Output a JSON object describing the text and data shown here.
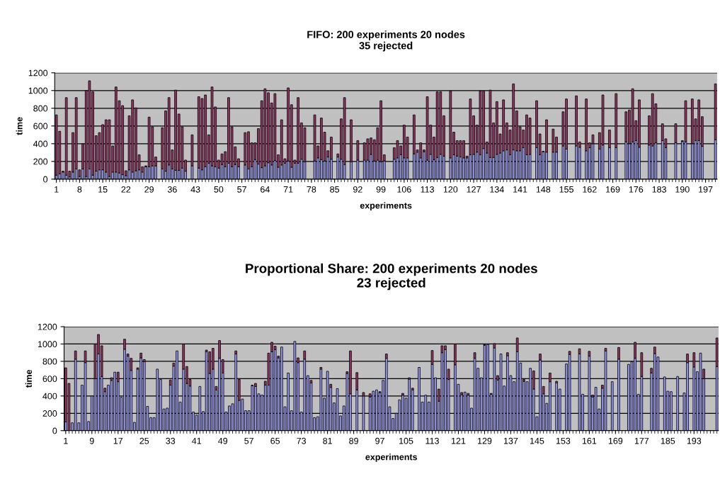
{
  "chart_data": [
    {
      "type": "bar",
      "stacked": true,
      "title": "FIFO: 200 experiments 20 nodes\n35 rejected",
      "xlabel": "experiments",
      "ylabel": "time",
      "ylim": [
        0,
        1200
      ],
      "yticks": [
        0,
        200,
        400,
        600,
        800,
        1000,
        1200
      ],
      "grid": "y",
      "categories": [
        "1",
        null,
        null,
        null,
        null,
        null,
        null,
        "8",
        null,
        null,
        null,
        null,
        null,
        null,
        "15",
        null,
        null,
        null,
        null,
        null,
        null,
        "22",
        null,
        null,
        null,
        null,
        null,
        null,
        "29",
        null,
        null,
        null,
        null,
        null,
        null,
        "36",
        null,
        null,
        null,
        null,
        null,
        null,
        "43",
        null,
        null,
        null,
        null,
        null,
        null,
        "50",
        null,
        null,
        null,
        null,
        null,
        null,
        "57",
        null,
        null,
        null,
        null,
        null,
        null,
        "64",
        null,
        null,
        null,
        null,
        null,
        null,
        "71",
        null,
        null,
        null,
        null,
        null,
        null,
        "78",
        null,
        null,
        null,
        null,
        null,
        null,
        "85",
        null,
        null,
        null,
        null,
        null,
        null,
        "92",
        null,
        null,
        null,
        null,
        null,
        null,
        "99",
        null,
        null,
        null,
        null,
        null,
        null,
        "106",
        null,
        null,
        null,
        null,
        null,
        null,
        "113",
        null,
        null,
        null,
        null,
        null,
        null,
        "120",
        null,
        null,
        null,
        null,
        null,
        null,
        "127",
        null,
        null,
        null,
        null,
        null,
        null,
        "134",
        null,
        null,
        null,
        null,
        null,
        null,
        "141",
        null,
        null,
        null,
        null,
        null,
        null,
        "148",
        null,
        null,
        null,
        null,
        null,
        null,
        "155",
        null,
        null,
        null,
        null,
        null,
        null,
        "162",
        null,
        null,
        null,
        null,
        null,
        null,
        "169",
        null,
        null,
        null,
        null,
        null,
        null,
        "176",
        null,
        null,
        null,
        null,
        null,
        null,
        "183",
        null,
        null,
        null,
        null,
        null,
        null,
        "190",
        null,
        null,
        null,
        null,
        null,
        null,
        "197",
        null,
        null,
        null
      ],
      "series": [
        {
          "color": "#9999ff",
          "values": [
            45,
            60,
            80,
            45,
            25,
            80,
            115,
            30,
            115,
            30,
            115,
            45,
            90,
            105,
            105,
            80,
            30,
            80,
            80,
            70,
            50,
            40,
            105,
            80,
            95,
            105,
            80,
            140,
            140,
            150,
            150,
            0,
            115,
            90,
            160,
            115,
            100,
            100,
            125,
            90,
            0,
            150,
            0,
            125,
            105,
            140,
            180,
            150,
            140,
            125,
            165,
            140,
            180,
            140,
            165,
            140,
            0,
            160,
            115,
            140,
            220,
            170,
            130,
            150,
            185,
            160,
            210,
            135,
            160,
            180,
            205,
            135,
            180,
            180,
            225,
            195,
            0,
            0,
            205,
            240,
            220,
            205,
            250,
            225,
            0,
            250,
            225,
            165,
            0,
            195,
            0,
            215,
            0,
            215,
            215,
            280,
            205,
            215,
            195,
            205,
            0,
            0,
            225,
            240,
            275,
            240,
            240,
            0,
            285,
            305,
            240,
            310,
            215,
            280,
            220,
            245,
            280,
            260,
            0,
            240,
            275,
            260,
            250,
            240,
            240,
            275,
            280,
            305,
            275,
            345,
            295,
            245,
            245,
            280,
            295,
            320,
            330,
            275,
            330,
            320,
            320,
            355,
            275,
            280,
            0,
            355,
            275,
            310,
            305,
            0,
            305,
            305,
            0,
            375,
            340,
            0,
            0,
            375,
            360,
            0,
            320,
            355,
            400,
            0,
            340,
            385,
            0,
            355,
            0,
            355,
            0,
            0,
            420,
            400,
            420,
            435,
            360,
            0,
            0,
            385,
            375,
            410,
            0,
            435,
            355,
            0,
            0,
            410,
            0,
            425,
            420,
            0,
            400,
            435,
            435,
            370,
            0,
            0,
            0,
            445
          ]
        },
        {
          "color": "#993366",
          "values": [
            680,
            480,
            10,
            875,
            65,
            445,
            805,
            75,
            285,
            970,
            995,
            940,
            400,
            420,
            510,
            590,
            640,
            295,
            960,
            815,
            780,
            55,
            610,
            815,
            710,
            170,
            60,
            10,
            560,
            440,
            100,
            0,
            465,
            680,
            760,
            215,
            905,
            635,
            465,
            125,
            0,
            350,
            0,
            805,
            805,
            810,
            320,
            890,
            675,
            90,
            120,
            170,
            740,
            450,
            200,
            90,
            0,
            365,
            420,
            270,
            190,
            400,
            755,
            870,
            790,
            700,
            755,
            140,
            510,
            50,
            825,
            705,
            35,
            740,
            410,
            385,
            0,
            0,
            520,
            135,
            470,
            325,
            70,
            250,
            0,
            35,
            455,
            755,
            0,
            475,
            0,
            220,
            0,
            195,
            240,
            185,
            240,
            365,
            690,
            70,
            0,
            0,
            130,
            195,
            100,
            370,
            235,
            0,
            440,
            25,
            170,
            20,
            715,
            330,
            255,
            740,
            705,
            455,
            0,
            755,
            255,
            175,
            185,
            195,
            20,
            630,
            435,
            305,
            720,
            650,
            125,
            760,
            390,
            595,
            215,
            575,
            305,
            280,
            745,
            450,
            270,
            200,
            450,
            410,
            0,
            530,
            235,
            5,
            365,
            0,
            260,
            170,
            0,
            385,
            565,
            0,
            0,
            565,
            60,
            0,
            585,
            55,
            100,
            0,
            185,
            565,
            0,
            200,
            0,
            610,
            0,
            0,
            340,
            380,
            600,
            225,
            535,
            0,
            0,
            330,
            590,
            440,
            0,
            190,
            100,
            0,
            0,
            215,
            0,
            10,
            465,
            0,
            505,
            245,
            460,
            335,
            0,
            0,
            0,
            630
          ]
        }
      ]
    },
    {
      "type": "bar",
      "stacked": true,
      "title": "Proportional Share: 200 experiments 20 nodes\n23 rejected",
      "xlabel": "experiments",
      "ylabel": "time",
      "ylim": [
        0,
        1200
      ],
      "yticks": [
        0,
        200,
        400,
        600,
        800,
        1000,
        1200
      ],
      "grid": "y",
      "categories": [
        "1",
        null,
        null,
        null,
        null,
        null,
        null,
        null,
        "9",
        null,
        null,
        null,
        null,
        null,
        null,
        null,
        "17",
        null,
        null,
        null,
        null,
        null,
        null,
        null,
        "25",
        null,
        null,
        null,
        null,
        null,
        null,
        null,
        "33",
        null,
        null,
        null,
        null,
        null,
        null,
        null,
        "41",
        null,
        null,
        null,
        null,
        null,
        null,
        null,
        "49",
        null,
        null,
        null,
        null,
        null,
        null,
        null,
        "57",
        null,
        null,
        null,
        null,
        null,
        null,
        null,
        "65",
        null,
        null,
        null,
        null,
        null,
        null,
        null,
        "73",
        null,
        null,
        null,
        null,
        null,
        null,
        null,
        "81",
        null,
        null,
        null,
        null,
        null,
        null,
        null,
        "89",
        null,
        null,
        null,
        null,
        null,
        null,
        null,
        "97",
        null,
        null,
        null,
        null,
        null,
        null,
        null,
        "105",
        null,
        null,
        null,
        null,
        null,
        null,
        null,
        "113",
        null,
        null,
        null,
        null,
        null,
        null,
        null,
        "121",
        null,
        null,
        null,
        null,
        null,
        null,
        null,
        "129",
        null,
        null,
        null,
        null,
        null,
        null,
        null,
        "137",
        null,
        null,
        null,
        null,
        null,
        null,
        null,
        "145",
        null,
        null,
        null,
        null,
        null,
        null,
        null,
        "153",
        null,
        null,
        null,
        null,
        null,
        null,
        null,
        "161",
        null,
        null,
        null,
        null,
        null,
        null,
        null,
        "169",
        null,
        null,
        null,
        null,
        null,
        null,
        null,
        "177",
        null,
        null,
        null,
        null,
        null,
        null,
        null,
        "185",
        null,
        null,
        null,
        null,
        null,
        null,
        null,
        "193",
        null,
        null,
        null,
        null,
        null,
        null,
        null
      ],
      "series": [
        {
          "color": "#9999ff",
          "values": [
            100,
            0,
            90,
            825,
            90,
            525,
            785,
            105,
            400,
            600,
            885,
            625,
            450,
            525,
            580,
            675,
            565,
            385,
            940,
            860,
            695,
            95,
            710,
            840,
            795,
            280,
            150,
            150,
            710,
            590,
            250,
            260,
            525,
            745,
            920,
            330,
            710,
            545,
            515,
            215,
            180,
            510,
            220,
            910,
            660,
            710,
            470,
            835,
            665,
            215,
            285,
            310,
            885,
            350,
            365,
            230,
            230,
            520,
            510,
            425,
            410,
            525,
            525,
            910,
            935,
            840,
            965,
            275,
            665,
            230,
            1030,
            785,
            215,
            825,
            635,
            550,
            150,
            160,
            710,
            375,
            685,
            500,
            320,
            485,
            170,
            285,
            660,
            425,
            0,
            470,
            0,
            400,
            0,
            390,
            455,
            470,
            440,
            580,
            835,
            275,
            140,
            200,
            355,
            410,
            375,
            595,
            470,
            0,
            730,
            330,
            410,
            330,
            765,
            610,
            340,
            900,
            935,
            590,
            0,
            760,
            535,
            415,
            445,
            410,
            260,
            835,
            720,
            610,
            985,
            995,
            420,
            955,
            585,
            885,
            515,
            865,
            635,
            565,
            910,
            780,
            570,
            565,
            720,
            480,
            160,
            815,
            425,
            315,
            565,
            0,
            550,
            480,
            0,
            770,
            880,
            0,
            0,
            885,
            420,
            0,
            860,
            390,
            500,
            250,
            490,
            920,
            0,
            565,
            0,
            825,
            0,
            0,
            765,
            795,
            835,
            420,
            625,
            0,
            0,
            665,
            890,
            850,
            0,
            620,
            455,
            450,
            0,
            625,
            0,
            435,
            785,
            0,
            735,
            680,
            895,
            600,
            0,
            0,
            0,
            740
          ]
        },
        {
          "color": "#993366",
          "values": [
            625,
            545,
            0,
            95,
            0,
            0,
            135,
            0,
            0,
            400,
            225,
            355,
            40,
            0,
            30,
            0,
            110,
            0,
            115,
            25,
            140,
            0,
            15,
            55,
            25,
            0,
            0,
            0,
            0,
            0,
            0,
            0,
            60,
            35,
            0,
            0,
            290,
            195,
            75,
            0,
            0,
            0,
            0,
            20,
            250,
            240,
            40,
            205,
            155,
            0,
            0,
            0,
            35,
            240,
            0,
            0,
            0,
            5,
            35,
            0,
            0,
            45,
            370,
            110,
            40,
            20,
            0,
            0,
            0,
            0,
            0,
            55,
            0,
            95,
            0,
            30,
            0,
            0,
            20,
            0,
            0,
            35,
            0,
            0,
            0,
            0,
            20,
            495,
            0,
            200,
            0,
            40,
            0,
            35,
            0,
            0,
            10,
            0,
            50,
            0,
            0,
            0,
            0,
            20,
            0,
            15,
            20,
            0,
            0,
            0,
            0,
            0,
            160,
            0,
            140,
            80,
            45,
            120,
            0,
            240,
            0,
            25,
            0,
            20,
            0,
            65,
            0,
            0,
            10,
            0,
            10,
            50,
            50,
            0,
            0,
            35,
            0,
            0,
            160,
            0,
            20,
            0,
            0,
            210,
            0,
            70,
            85,
            0,
            100,
            0,
            20,
            0,
            0,
            0,
            35,
            0,
            0,
            60,
            0,
            0,
            55,
            20,
            0,
            0,
            35,
            30,
            0,
            0,
            0,
            135,
            0,
            0,
            0,
            0,
            185,
            0,
            275,
            0,
            0,
            55,
            75,
            0,
            0,
            0,
            0,
            0,
            0,
            0,
            0,
            0,
            100,
            0,
            165,
            0,
            0,
            110,
            0,
            0,
            0,
            330
          ]
        }
      ]
    }
  ]
}
